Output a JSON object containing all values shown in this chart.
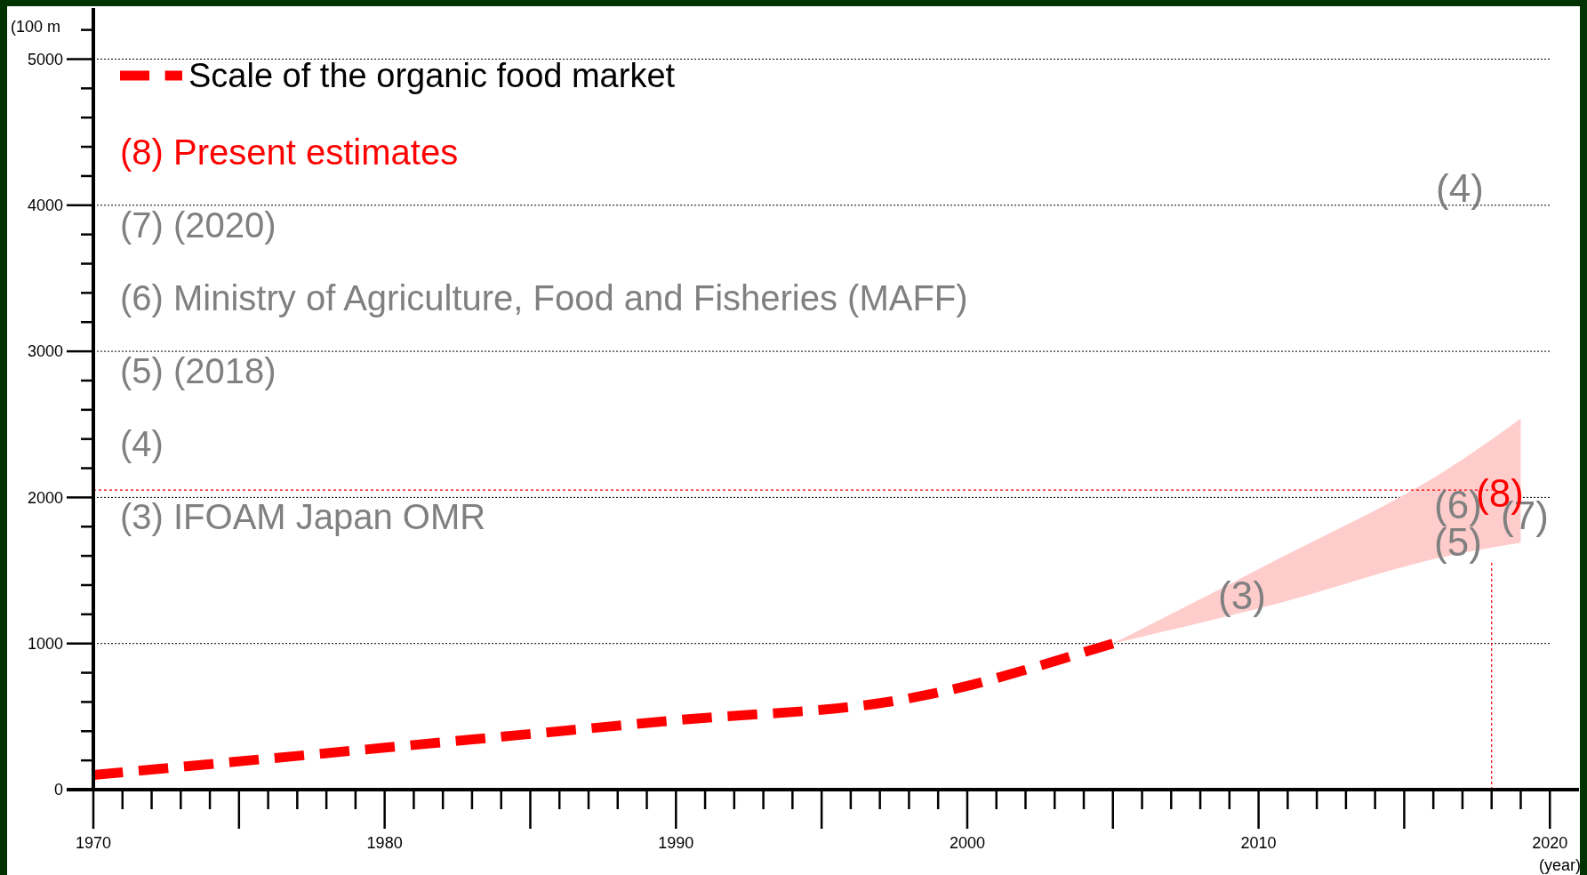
{
  "chart_data": {
    "type": "line",
    "ylabel": "(100 m",
    "xlabel": "(year)",
    "xlim": [
      1970,
      2021
    ],
    "ylim": [
      0,
      5350
    ],
    "xticks": [
      1970,
      1980,
      1990,
      2000,
      2010,
      2020
    ],
    "yticks": [
      0,
      {
        "value": 200,
        "label": null
      },
      {
        "value": 400,
        "label": null
      },
      {
        "value": 600,
        "label": null
      },
      {
        "value": 800,
        "label": null
      },
      1000,
      {
        "value": 1200,
        "label": null
      },
      {
        "value": 1400,
        "label": null
      },
      {
        "value": 1600,
        "label": null
      },
      {
        "value": 1800,
        "label": null
      },
      2000,
      {
        "value": 2200,
        "label": null
      },
      {
        "value": 2400,
        "label": null
      },
      {
        "value": 2600,
        "label": null
      },
      {
        "value": 2800,
        "label": null
      },
      3000,
      {
        "value": 3200,
        "label": null
      },
      {
        "value": 3400,
        "label": null
      },
      {
        "value": 3600,
        "label": null
      },
      {
        "value": 3800,
        "label": null
      },
      4000,
      {
        "value": 4200,
        "label": null
      },
      {
        "value": 4400,
        "label": null
      },
      {
        "value": 4600,
        "label": null
      },
      {
        "value": 4800,
        "label": null
      },
      5000,
      {
        "value": 5200,
        "label": null
      }
    ],
    "grid": "y",
    "legend": "top left",
    "line_style": "dashed",
    "marker": "none",
    "series": [
      {
        "name": "Scale of the organic food market",
        "color": "#ff0000",
        "x": [
          1970,
          1980,
          1990,
          1998,
          2000,
          2002,
          2004,
          2005
        ],
        "values": [
          100,
          287,
          475,
          625,
          710,
          820,
          940,
          1000
        ]
      },
      {
        "type": "area",
        "color": "#ffcccc",
        "x": [
          2005,
          2010,
          2017,
          2019
        ],
        "values": [
          null,
          null,
          null,
          null
        ],
        "lower": [
          1000,
          1240,
          1620,
          1690
        ],
        "upper": [
          1000,
          1510,
          2260,
          2540
        ]
      }
    ],
    "ref_lines": [
      {
        "axis": "y",
        "value": 2050,
        "color": "#ff0000",
        "line_style": "dotted"
      },
      {
        "axis": "x",
        "value": 2018,
        "color": "#ff0000",
        "line_style": "dotted"
      }
    ],
    "annotations": [
      "(8) Present estimates",
      "(7) (2020)",
      "(6) Ministry of Agriculture, Food and Fisheries (MAFF)",
      "(5) (2018)",
      "(4)",
      "(3) IFOAM Japan OMR",
      "(3)",
      "(4)",
      "(5)",
      "(6)",
      "(7)",
      "(8)"
    ]
  }
}
